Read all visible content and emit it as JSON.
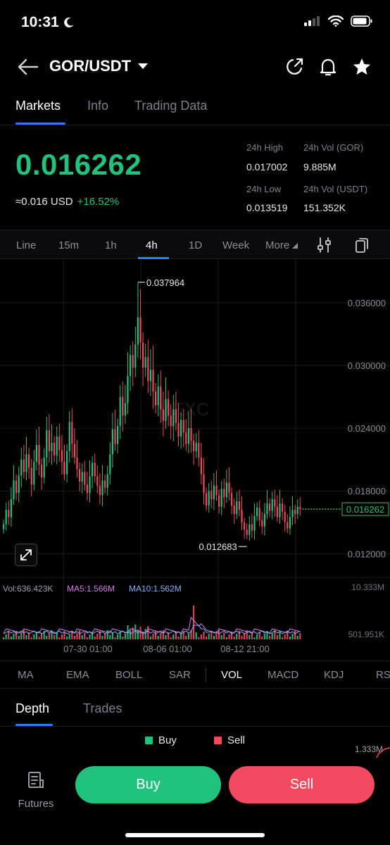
{
  "status": {
    "time": "10:31"
  },
  "header": {
    "pair": "GOR/USDT"
  },
  "tabs": [
    "Markets",
    "Info",
    "Trading Data"
  ],
  "price": {
    "last": "0.016262",
    "usd": "≈0.016 USD",
    "change": "+16.52%",
    "high_label": "24h High",
    "high": "0.017002",
    "vol_gor_label": "24h Vol (GOR)",
    "vol_gor": "9.885M",
    "low_label": "24h Low",
    "low": "0.013519",
    "vol_usdt_label": "24h Vol  (USDT)",
    "vol_usdt": "151.352K"
  },
  "intervals": [
    "Line",
    "15m",
    "1h",
    "4h",
    "1D",
    "Week",
    "More"
  ],
  "chart_data": {
    "type": "candlestick",
    "watermark": "MEXC",
    "y_ticks": [
      "0.036000",
      "0.030000",
      "0.024000",
      "0.018000",
      "0.012000"
    ],
    "y_tick_values": [
      0.036,
      0.03,
      0.024,
      0.018,
      0.012
    ],
    "ylim": [
      0.0102,
      0.0395
    ],
    "x_ticks": [
      "07-30 01:00",
      "08-06 01:00",
      "08-12 21:00"
    ],
    "max_label": "0.037964",
    "max_value": 0.037964,
    "min_label": "0.012683",
    "min_value": 0.012683,
    "last_label": "0.016262",
    "last_value": 0.016262,
    "volume": {
      "vol_label": "Vol:636.423K",
      "ma5_label": "MA5:1.566M",
      "ma10_label": "MA10:1.562M",
      "max_label": "10.333M",
      "min_label": "501.951K"
    },
    "colors": {
      "up": "#21c27d",
      "down": "#f2495c",
      "ma5": "#d779e9",
      "ma10": "#7fb2ff"
    }
  },
  "indicators": [
    "MA",
    "EMA",
    "BOLL",
    "SAR",
    "VOL",
    "MACD",
    "KDJ",
    "RSI"
  ],
  "depth": {
    "tabs": [
      "Depth",
      "Trades"
    ],
    "buy_label": "Buy",
    "sell_label": "Sell",
    "axis_label": "1.333M"
  },
  "bottom": {
    "futures": "Futures",
    "buy": "Buy",
    "sell": "Sell"
  }
}
